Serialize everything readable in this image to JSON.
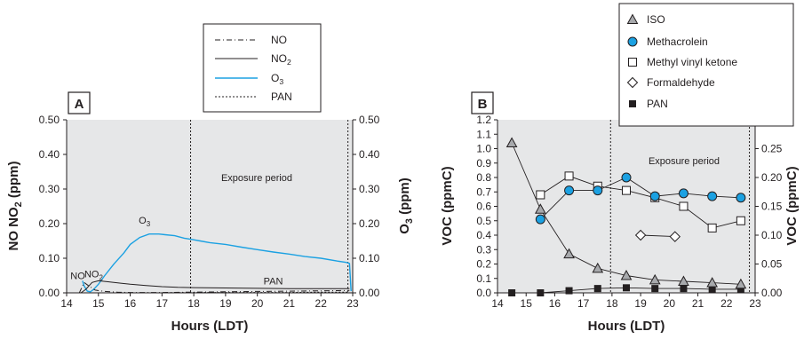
{
  "chart_data": [
    {
      "panel": "A",
      "type": "line",
      "xlabel": "Hours (LDT)",
      "ylabel": "NO NO2 (ppm)",
      "ylabel_sub": "2",
      "y2label": "O3 (ppm)",
      "y2label_sub": "3",
      "xlim": [
        14,
        23
      ],
      "ylim": [
        0,
        0.5
      ],
      "y2lim": [
        0,
        0.5
      ],
      "xticks": [
        "14",
        "15",
        "16",
        "17",
        "18",
        "19",
        "20",
        "21",
        "22",
        "23"
      ],
      "yticks": [
        "0.00",
        "0.10",
        "0.20",
        "0.30",
        "0.40",
        "0.50"
      ],
      "y2ticks": [
        "0.00",
        "0.10",
        "0.20",
        "0.30",
        "0.40",
        "0.50"
      ],
      "background": "#e6e7e8",
      "exposure_label": "Exposure period",
      "exposure_start": 17.9,
      "exposure_end": 22.85,
      "legend": [
        {
          "name": "NO",
          "style": "dash-dot",
          "color": "#231f20"
        },
        {
          "name": "NO2",
          "sub": "2",
          "style": "solid",
          "color": "#231f20"
        },
        {
          "name": "O3",
          "sub": "3",
          "style": "solid",
          "color": "#1ba1e2"
        },
        {
          "name": "PAN",
          "style": "dotted",
          "color": "#231f20"
        }
      ],
      "annotations": [
        {
          "text": "NO",
          "x": 14.35,
          "y": 0.04
        },
        {
          "text": "NO2",
          "sub": "2",
          "x": 14.85,
          "y": 0.045
        },
        {
          "text": "O3",
          "sub": "3",
          "x": 16.45,
          "y": 0.2
        },
        {
          "text": "PAN",
          "x": 20.5,
          "y": 0.025
        }
      ],
      "series": [
        {
          "name": "O3",
          "color": "#1ba1e2",
          "x": [
            14.5,
            14.55,
            14.65,
            14.75,
            14.85,
            15.0,
            15.2,
            15.5,
            15.8,
            16.0,
            16.3,
            16.6,
            16.9,
            17.1,
            17.4,
            17.7,
            17.9,
            18.2,
            18.5,
            19.0,
            19.5,
            20.0,
            20.5,
            21.0,
            21.5,
            22.0,
            22.5,
            22.8,
            22.9,
            22.95
          ],
          "y": [
            0.035,
            0.02,
            0.005,
            0.003,
            0.01,
            0.025,
            0.05,
            0.085,
            0.115,
            0.14,
            0.16,
            0.17,
            0.17,
            0.168,
            0.165,
            0.158,
            0.155,
            0.15,
            0.145,
            0.14,
            0.132,
            0.125,
            0.118,
            0.112,
            0.105,
            0.1,
            0.092,
            0.088,
            0.085,
            0.005
          ]
        },
        {
          "name": "NO2",
          "color": "#231f20",
          "x": [
            14.45,
            14.6,
            14.8,
            15.0,
            15.3,
            15.7,
            16.0,
            16.5,
            17.0,
            17.5,
            18.0,
            19.0,
            20.0,
            21.0,
            22.0,
            22.9
          ],
          "y": [
            0.0,
            0.01,
            0.03,
            0.035,
            0.032,
            0.028,
            0.025,
            0.021,
            0.018,
            0.016,
            0.015,
            0.014,
            0.013,
            0.012,
            0.012,
            0.012
          ]
        },
        {
          "name": "NO",
          "color": "#231f20",
          "dash": "dashdot",
          "x": [
            14.4,
            14.55,
            14.7,
            14.9,
            15.2,
            15.6,
            16.0,
            17.0,
            18.0,
            19.0,
            20.0,
            21.0,
            22.0,
            22.9
          ],
          "y": [
            0.0,
            0.03,
            0.02,
            0.008,
            0.004,
            0.002,
            0.001,
            0.001,
            0.002,
            0.003,
            0.004,
            0.005,
            0.006,
            0.007
          ]
        },
        {
          "name": "PAN",
          "color": "#231f20",
          "dash": "dotted",
          "x": [
            14.4,
            15.0,
            16.0,
            17.0,
            18.0,
            19.0,
            20.0,
            21.0,
            22.0,
            22.9
          ],
          "y": [
            0.0,
            0.0,
            0.0,
            0.0,
            0.001,
            0.001,
            0.001,
            0.001,
            0.002,
            0.002
          ]
        }
      ]
    },
    {
      "panel": "B",
      "type": "line",
      "xlabel": "Hours (LDT)",
      "ylabel": "VOC (ppmC)",
      "y2label": "VOC (ppmC)",
      "xlim": [
        14,
        23
      ],
      "ylim": [
        0,
        1.2
      ],
      "y2lim": [
        0,
        0.3
      ],
      "xticks": [
        "14",
        "15",
        "16",
        "17",
        "18",
        "19",
        "20",
        "21",
        "22",
        "23"
      ],
      "yticks": [
        "0.0",
        "0.1",
        "0.2",
        "0.3",
        "0.4",
        "0.5",
        "0.6",
        "0.7",
        "0.8",
        "0.9",
        "1.0",
        "1.1",
        "1.2"
      ],
      "y2ticks": [
        "0.00",
        "0.05",
        "0.10",
        "0.15",
        "0.20",
        "0.25",
        "0.30"
      ],
      "background": "#e6e7e8",
      "exposure_label": "Exposure period",
      "exposure_start": 17.95,
      "exposure_end": 22.8,
      "legend": [
        {
          "name": "ISO",
          "marker": "triangle",
          "color": "#a7a9ac"
        },
        {
          "name": "Methacrolein",
          "marker": "circle",
          "color": "#1ba1e2"
        },
        {
          "name": "Methyl vinyl ketone",
          "marker": "square-open",
          "color": "#ffffff"
        },
        {
          "name": "Formaldehyde",
          "marker": "diamond-open",
          "color": "#ffffff"
        },
        {
          "name": "PAN",
          "marker": "square-filled",
          "color": "#231f20"
        }
      ],
      "series": [
        {
          "name": "ISO",
          "marker": "triangle",
          "color": "#a7a9ac",
          "x": [
            14.5,
            15.5,
            16.5,
            17.5,
            18.5,
            19.5,
            20.5,
            21.5,
            22.5
          ],
          "y": [
            1.04,
            0.58,
            0.27,
            0.17,
            0.12,
            0.09,
            0.08,
            0.07,
            0.06
          ]
        },
        {
          "name": "Methacrolein",
          "marker": "circle",
          "color": "#1ba1e2",
          "x": [
            15.5,
            16.5,
            17.5,
            18.5,
            19.5,
            20.5,
            21.5,
            22.5
          ],
          "y": [
            0.51,
            0.71,
            0.71,
            0.8,
            0.67,
            0.69,
            0.67,
            0.66
          ]
        },
        {
          "name": "Methyl vinyl ketone",
          "marker": "square-open",
          "color": "#ffffff",
          "x": [
            15.5,
            16.5,
            17.5,
            18.5,
            19.5,
            20.5,
            21.5,
            22.5
          ],
          "y": [
            0.68,
            0.81,
            0.74,
            0.71,
            0.66,
            0.6,
            0.45,
            0.5
          ]
        },
        {
          "name": "Formaldehyde",
          "marker": "diamond-open",
          "color": "#ffffff",
          "x": [
            19.0,
            20.2
          ],
          "y": [
            0.4,
            0.39
          ]
        },
        {
          "name": "PAN",
          "marker": "square-filled",
          "color": "#231f20",
          "x": [
            14.5,
            15.5,
            16.5,
            17.5,
            18.5,
            19.5,
            20.5,
            21.5,
            22.5
          ],
          "y": [
            0.0,
            0.0,
            0.015,
            0.03,
            0.035,
            0.03,
            0.03,
            0.025,
            0.025
          ]
        }
      ]
    }
  ]
}
